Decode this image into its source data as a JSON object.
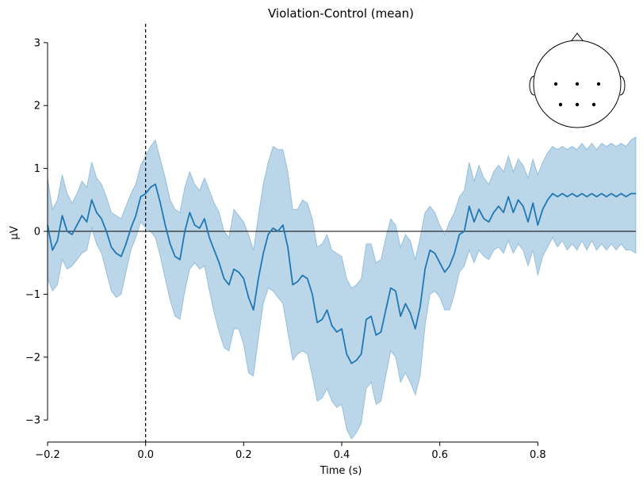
{
  "chart_data": {
    "type": "line",
    "title": "Violation-Control (mean)",
    "xlabel": "Time (s)",
    "ylabel": "µV",
    "xlim": [
      -0.2,
      1.0
    ],
    "ylim": [
      -3.35,
      3.3
    ],
    "x_spine_range": [
      -0.2,
      0.8
    ],
    "y_spine_range": [
      -3,
      3
    ],
    "xticks": [
      -0.2,
      0.0,
      0.2,
      0.4,
      0.6,
      0.8
    ],
    "xtick_labels": [
      "−0.2",
      "0.0",
      "0.2",
      "0.4",
      "0.6",
      "0.8"
    ],
    "yticks": [
      -3,
      -2,
      -1,
      0,
      1,
      2,
      3
    ],
    "ytick_labels": [
      "−3",
      "−2",
      "−1",
      "0",
      "1",
      "2",
      "3"
    ],
    "grid": false,
    "line_color": "#1f77b4",
    "band_color": "#1f77b4",
    "band_opacity": 0.3,
    "zero_line": true,
    "stimulus_onset_marker": 0.0,
    "series": [
      {
        "x": [
          -0.2,
          -0.19,
          -0.18,
          -0.17,
          -0.16,
          -0.15,
          -0.14,
          -0.13,
          -0.12,
          -0.11,
          -0.1,
          -0.09,
          -0.08,
          -0.07,
          -0.06,
          -0.05,
          -0.04,
          -0.03,
          -0.02,
          -0.01,
          0.0,
          0.01,
          0.02,
          0.03,
          0.04,
          0.05,
          0.06,
          0.07,
          0.08,
          0.09,
          0.1,
          0.11,
          0.12,
          0.13,
          0.14,
          0.15,
          0.16,
          0.17,
          0.18,
          0.19,
          0.2,
          0.21,
          0.22,
          0.23,
          0.24,
          0.25,
          0.26,
          0.27,
          0.28,
          0.29,
          0.3,
          0.31,
          0.32,
          0.33,
          0.34,
          0.35,
          0.36,
          0.37,
          0.38,
          0.39,
          0.4,
          0.41,
          0.42,
          0.43,
          0.44,
          0.45,
          0.46,
          0.47,
          0.48,
          0.49,
          0.5,
          0.51,
          0.52,
          0.53,
          0.54,
          0.55,
          0.56,
          0.57,
          0.58,
          0.59,
          0.6,
          0.61,
          0.62,
          0.63,
          0.64,
          0.65,
          0.66,
          0.67,
          0.68,
          0.69,
          0.7,
          0.71,
          0.72,
          0.73,
          0.74,
          0.75,
          0.76,
          0.77,
          0.78,
          0.79,
          0.8,
          0.81,
          0.82,
          0.83,
          0.84,
          0.85,
          0.86,
          0.87,
          0.88,
          0.89,
          0.9,
          0.91,
          0.92,
          0.93,
          0.94,
          0.95,
          0.96,
          0.97,
          0.98,
          0.99,
          1.0
        ],
        "y": [
          0.1,
          -0.3,
          -0.15,
          0.25,
          0.0,
          -0.05,
          0.1,
          0.25,
          0.15,
          0.5,
          0.3,
          0.2,
          0.0,
          -0.25,
          -0.35,
          -0.4,
          -0.2,
          0.05,
          0.25,
          0.55,
          0.6,
          0.7,
          0.75,
          0.45,
          0.1,
          -0.2,
          -0.4,
          -0.45,
          0.0,
          0.3,
          0.1,
          0.05,
          0.2,
          -0.1,
          -0.3,
          -0.5,
          -0.75,
          -0.85,
          -0.6,
          -0.65,
          -0.75,
          -1.05,
          -1.25,
          -0.75,
          -0.35,
          -0.05,
          0.05,
          0.0,
          0.1,
          -0.25,
          -0.85,
          -0.8,
          -0.7,
          -0.75,
          -1.0,
          -1.45,
          -1.4,
          -1.25,
          -1.5,
          -1.6,
          -1.55,
          -1.95,
          -2.1,
          -2.05,
          -1.95,
          -1.4,
          -1.35,
          -1.65,
          -1.6,
          -1.25,
          -0.9,
          -0.95,
          -1.35,
          -1.15,
          -1.3,
          -1.55,
          -1.2,
          -0.6,
          -0.3,
          -0.35,
          -0.5,
          -0.65,
          -0.55,
          -0.35,
          -0.05,
          0.0,
          0.4,
          0.15,
          0.35,
          0.2,
          0.15,
          0.3,
          0.4,
          0.3,
          0.55,
          0.3,
          0.5,
          0.4,
          0.15,
          0.45,
          0.1,
          0.35,
          0.5,
          0.6,
          0.55,
          0.6,
          0.55,
          0.6,
          0.55,
          0.6,
          0.55,
          0.6,
          0.55,
          0.6,
          0.55,
          0.6,
          0.55,
          0.6,
          0.55,
          0.6,
          0.6
        ],
        "lower": [
          -0.75,
          -0.95,
          -0.85,
          -0.45,
          -0.6,
          -0.55,
          -0.45,
          -0.35,
          -0.3,
          0.05,
          -0.2,
          -0.35,
          -0.65,
          -0.95,
          -1.05,
          -1.0,
          -0.65,
          -0.3,
          -0.1,
          0.15,
          0.05,
          0.0,
          -0.1,
          -0.4,
          -0.75,
          -1.1,
          -1.35,
          -1.4,
          -0.95,
          -0.6,
          -0.5,
          -0.6,
          -0.55,
          -0.95,
          -1.3,
          -1.6,
          -1.85,
          -1.9,
          -1.55,
          -1.55,
          -1.8,
          -2.25,
          -2.3,
          -1.7,
          -1.15,
          -0.9,
          -0.95,
          -1.05,
          -1.15,
          -1.6,
          -2.05,
          -1.95,
          -1.9,
          -1.95,
          -2.3,
          -2.7,
          -2.65,
          -2.5,
          -2.7,
          -2.8,
          -2.75,
          -3.15,
          -3.3,
          -3.2,
          -3.05,
          -2.5,
          -2.4,
          -2.75,
          -2.7,
          -2.3,
          -1.9,
          -2.0,
          -2.4,
          -2.25,
          -2.4,
          -2.6,
          -2.3,
          -1.5,
          -1.0,
          -0.95,
          -1.05,
          -1.25,
          -1.25,
          -1.0,
          -0.65,
          -0.55,
          -0.3,
          -0.5,
          -0.3,
          -0.4,
          -0.45,
          -0.3,
          -0.25,
          -0.35,
          -0.15,
          -0.35,
          -0.2,
          -0.3,
          -0.55,
          -0.3,
          -0.7,
          -0.4,
          -0.25,
          -0.1,
          -0.25,
          -0.15,
          -0.3,
          -0.2,
          -0.3,
          -0.15,
          -0.3,
          -0.15,
          -0.3,
          -0.2,
          -0.3,
          -0.2,
          -0.3,
          -0.2,
          -0.3,
          -0.3,
          -0.35
        ],
        "upper": [
          0.85,
          0.35,
          0.5,
          0.9,
          0.6,
          0.45,
          0.6,
          0.8,
          0.7,
          1.1,
          0.85,
          0.75,
          0.55,
          0.3,
          0.25,
          0.2,
          0.4,
          0.6,
          0.75,
          1.05,
          1.2,
          1.35,
          1.45,
          1.15,
          0.85,
          0.5,
          0.35,
          0.3,
          0.7,
          0.95,
          0.75,
          0.65,
          0.85,
          0.65,
          0.45,
          0.3,
          0.0,
          -0.1,
          0.35,
          0.25,
          0.15,
          -0.05,
          -0.3,
          0.25,
          0.75,
          1.1,
          1.35,
          1.3,
          1.3,
          0.95,
          0.35,
          0.35,
          0.5,
          0.45,
          0.2,
          -0.25,
          -0.2,
          -0.05,
          -0.3,
          -0.35,
          -0.4,
          -0.75,
          -0.9,
          -0.85,
          -0.75,
          -0.2,
          -0.2,
          -0.5,
          -0.45,
          -0.1,
          0.2,
          0.1,
          -0.25,
          -0.05,
          -0.15,
          -0.45,
          -0.1,
          0.3,
          0.4,
          0.3,
          0.1,
          -0.05,
          0.15,
          0.3,
          0.55,
          0.65,
          1.1,
          0.8,
          1.05,
          0.85,
          0.75,
          0.95,
          1.05,
          0.95,
          1.2,
          0.95,
          1.15,
          1.05,
          0.85,
          1.15,
          0.9,
          1.1,
          1.25,
          1.35,
          1.3,
          1.35,
          1.3,
          1.35,
          1.3,
          1.4,
          1.3,
          1.4,
          1.3,
          1.4,
          1.35,
          1.4,
          1.35,
          1.4,
          1.35,
          1.45,
          1.5
        ]
      }
    ],
    "sensor_inset": {
      "description_type": "head-outline",
      "sensor_positions": [
        [
          -0.45,
          -0.35
        ],
        [
          0.0,
          -0.35
        ],
        [
          0.45,
          -0.35
        ],
        [
          -0.35,
          0.05
        ],
        [
          0.0,
          0.05
        ],
        [
          0.35,
          0.05
        ]
      ]
    }
  }
}
